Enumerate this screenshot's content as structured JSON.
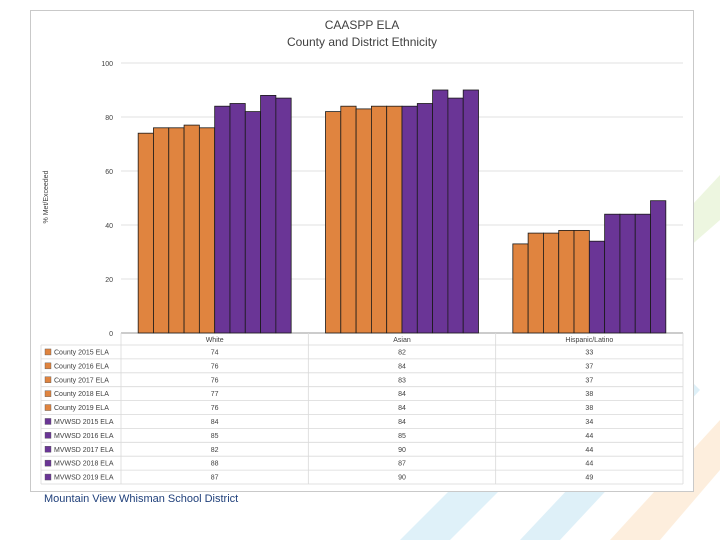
{
  "colors": {
    "county": "#e0843f",
    "district": "#6a3596",
    "bar_stroke": "#1a1a1a"
  },
  "footer": "Mountain View Whisman School District",
  "chart_data": {
    "type": "bar",
    "title": "CAASPP ELA",
    "subtitle": "County and District Ethnicity",
    "ylabel": "% Met/Exceeded",
    "xlabel": "",
    "ylim": [
      0,
      100
    ],
    "yticks": [
      0,
      20,
      40,
      60,
      80,
      100
    ],
    "grid": true,
    "legend": "table-below",
    "categories": [
      "White",
      "Asian",
      "Hispanic/Latino"
    ],
    "series": [
      {
        "name": "County 2015 ELA",
        "group": "county",
        "values": [
          74,
          82,
          33
        ]
      },
      {
        "name": "County 2016 ELA",
        "group": "county",
        "values": [
          76,
          84,
          37
        ]
      },
      {
        "name": "County 2017 ELA",
        "group": "county",
        "values": [
          76,
          83,
          37
        ]
      },
      {
        "name": "County 2018 ELA",
        "group": "county",
        "values": [
          77,
          84,
          38
        ]
      },
      {
        "name": "County 2019 ELA",
        "group": "county",
        "values": [
          76,
          84,
          38
        ]
      },
      {
        "name": "MVWSD 2015 ELA",
        "group": "district",
        "values": [
          84,
          84,
          34
        ]
      },
      {
        "name": "MVWSD 2016 ELA",
        "group": "district",
        "values": [
          85,
          85,
          44
        ]
      },
      {
        "name": "MVWSD 2017 ELA",
        "group": "district",
        "values": [
          82,
          90,
          44
        ]
      },
      {
        "name": "MVWSD 2018 ELA",
        "group": "district",
        "values": [
          88,
          87,
          44
        ]
      },
      {
        "name": "MVWSD 2019 ELA",
        "group": "district",
        "values": [
          87,
          90,
          49
        ]
      }
    ]
  }
}
